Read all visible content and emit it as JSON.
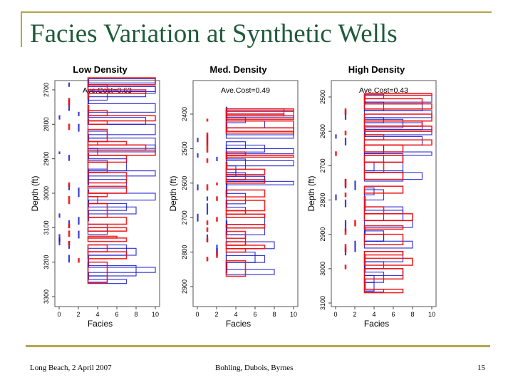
{
  "slide": {
    "title": "Facies Variation at Synthetic Wells",
    "footer_left": "Long Beach, 2 April 2007",
    "footer_center": "Bohling, Dubois, Byrnes",
    "page_number": "15",
    "accent_color": "#b5a54e",
    "title_color": "#1f5c3a"
  },
  "chart_data": [
    {
      "type": "line",
      "title": "Low Density",
      "annotation": "Ave.Cost=0.63",
      "xlabel": "Facies",
      "ylabel": "Depth (ft)",
      "xlim": [
        0,
        10
      ],
      "xticks": [
        "0",
        "2",
        "4",
        "6",
        "8",
        "10"
      ],
      "ylim": [
        3300,
        2700
      ],
      "yticks": [
        "2700",
        "2800",
        "2900",
        "3000",
        "3100",
        "3200",
        "3300"
      ],
      "series_colors": {
        "actual": "#ee1111",
        "realizations": "#1a1acc"
      },
      "actual": [
        [
          2665,
          10
        ],
        [
          2685,
          5
        ],
        [
          2700,
          9
        ],
        [
          2710,
          3
        ],
        [
          2725,
          1
        ],
        [
          2745,
          3
        ],
        [
          2760,
          5
        ],
        [
          2775,
          10
        ],
        [
          2790,
          5
        ],
        [
          2800,
          1
        ],
        [
          2815,
          5
        ],
        [
          2850,
          7
        ],
        [
          2860,
          9
        ],
        [
          2875,
          10
        ],
        [
          2890,
          7
        ],
        [
          2910,
          5
        ],
        [
          2940,
          7
        ],
        [
          2970,
          1
        ],
        [
          2980,
          7
        ],
        [
          3000,
          5
        ],
        [
          3010,
          1
        ],
        [
          3030,
          5
        ],
        [
          3070,
          7
        ],
        [
          3090,
          1
        ],
        [
          3100,
          7
        ],
        [
          3110,
          1
        ],
        [
          3125,
          6
        ],
        [
          3130,
          7
        ],
        [
          3140,
          1
        ],
        [
          3150,
          5
        ],
        [
          3170,
          7
        ],
        [
          3190,
          2
        ],
        [
          3200,
          5
        ],
        [
          3260,
          null
        ]
      ],
      "realizations": [
        [
          [
            2668,
            10
          ],
          [
            2680,
            1
          ],
          [
            2690,
            10
          ],
          [
            2705,
            9
          ],
          [
            2720,
            3
          ],
          [
            2740,
            10
          ],
          [
            2765,
            2
          ],
          [
            2775,
            0
          ],
          [
            2785,
            3
          ],
          [
            2800,
            10
          ],
          [
            2830,
            3
          ],
          [
            2850,
            4
          ],
          [
            2860,
            10
          ],
          [
            2880,
            0
          ],
          [
            2885,
            3
          ],
          [
            2900,
            7
          ],
          [
            2935,
            10
          ],
          [
            2950,
            3
          ],
          [
            2975,
            1
          ],
          [
            2990,
            3
          ],
          [
            3000,
            10
          ],
          [
            3020,
            3
          ],
          [
            3040,
            8
          ],
          [
            3060,
            0
          ],
          [
            3070,
            2
          ],
          [
            3090,
            5
          ],
          [
            3110,
            2
          ],
          [
            3130,
            0
          ],
          [
            3140,
            1
          ],
          [
            3160,
            8
          ],
          [
            3180,
            1
          ],
          [
            3200,
            3
          ],
          [
            3215,
            10
          ],
          [
            3230,
            3
          ],
          [
            3250,
            7
          ],
          [
            3262,
            null
          ]
        ],
        [
          [
            2670,
            3
          ],
          [
            2690,
            10
          ],
          [
            2710,
            5
          ],
          [
            2730,
            1
          ],
          [
            2760,
            3
          ],
          [
            2780,
            9
          ],
          [
            2800,
            2
          ],
          [
            2820,
            5
          ],
          [
            2840,
            10
          ],
          [
            2870,
            4
          ],
          [
            2890,
            1
          ],
          [
            2905,
            5
          ],
          [
            2930,
            3
          ],
          [
            2960,
            7
          ],
          [
            2985,
            2
          ],
          [
            3010,
            4
          ],
          [
            3030,
            7
          ],
          [
            3050,
            3
          ],
          [
            3080,
            1
          ],
          [
            3100,
            5
          ],
          [
            3120,
            0
          ],
          [
            3150,
            7
          ],
          [
            3180,
            3
          ],
          [
            3210,
            8
          ],
          [
            3240,
            5
          ],
          [
            3258,
            null
          ]
        ]
      ]
    },
    {
      "type": "line",
      "title": "Med. Density",
      "annotation": "Ave.Cost=0.49",
      "xlabel": "Facies",
      "ylabel": "Depth (ft)",
      "xlim": [
        0,
        10
      ],
      "xticks": [
        "0",
        "2",
        "4",
        "6",
        "8",
        "10"
      ],
      "ylim": [
        2950,
        2350
      ],
      "yticks": [
        "2400",
        "2500",
        "2600",
        "2700",
        "2800",
        "2900"
      ],
      "series_colors": {
        "actual": "#ee1111",
        "realizations": "#1a1acc"
      },
      "actual": [
        [
          2385,
          10
        ],
        [
          2392,
          3
        ],
        [
          2400,
          9
        ],
        [
          2405,
          10
        ],
        [
          2415,
          1
        ],
        [
          2420,
          10
        ],
        [
          2440,
          3
        ],
        [
          2450,
          10
        ],
        [
          2455,
          1
        ],
        [
          2510,
          5
        ],
        [
          2520,
          10
        ],
        [
          2525,
          3
        ],
        [
          2530,
          1
        ],
        [
          2540,
          3
        ],
        [
          2560,
          7
        ],
        [
          2575,
          5
        ],
        [
          2590,
          7
        ],
        [
          2600,
          2
        ],
        [
          2605,
          1
        ],
        [
          2620,
          7
        ],
        [
          2640,
          2
        ],
        [
          2650,
          7
        ],
        [
          2680,
          5
        ],
        [
          2690,
          7
        ],
        [
          2700,
          2
        ],
        [
          2710,
          1
        ],
        [
          2720,
          7
        ],
        [
          2730,
          1
        ],
        [
          2740,
          5
        ],
        [
          2760,
          1
        ],
        [
          2770,
          5
        ],
        [
          2780,
          7
        ],
        [
          2790,
          5
        ],
        [
          2800,
          2
        ],
        [
          2815,
          1
        ],
        [
          2825,
          5
        ],
        [
          2870,
          null
        ]
      ],
      "realizations": [
        [
          [
            2380,
            3
          ],
          [
            2390,
            10
          ],
          [
            2410,
            5
          ],
          [
            2425,
            3
          ],
          [
            2440,
            10
          ],
          [
            2470,
            0
          ],
          [
            2480,
            5
          ],
          [
            2500,
            10
          ],
          [
            2515,
            0
          ],
          [
            2525,
            2
          ],
          [
            2535,
            10
          ],
          [
            2550,
            4
          ],
          [
            2570,
            5
          ],
          [
            2580,
            7
          ],
          [
            2595,
            10
          ],
          [
            2605,
            0
          ],
          [
            2620,
            3
          ],
          [
            2640,
            1
          ],
          [
            2650,
            3
          ],
          [
            2670,
            5
          ],
          [
            2690,
            0
          ],
          [
            2710,
            3
          ],
          [
            2730,
            7
          ],
          [
            2750,
            1
          ],
          [
            2770,
            8
          ],
          [
            2790,
            2
          ],
          [
            2810,
            7
          ],
          [
            2830,
            3
          ],
          [
            2850,
            8
          ],
          [
            2865,
            null
          ]
        ],
        [
          [
            2385,
            9
          ],
          [
            2400,
            3
          ],
          [
            2420,
            7
          ],
          [
            2440,
            10
          ],
          [
            2460,
            1
          ],
          [
            2490,
            7
          ],
          [
            2510,
            3
          ],
          [
            2530,
            5
          ],
          [
            2560,
            4
          ],
          [
            2580,
            7
          ],
          [
            2600,
            3
          ],
          [
            2630,
            5
          ],
          [
            2660,
            1
          ],
          [
            2690,
            7
          ],
          [
            2720,
            3
          ],
          [
            2750,
            5
          ],
          [
            2780,
            2
          ],
          [
            2800,
            6
          ],
          [
            2830,
            3
          ],
          [
            2860,
            null
          ]
        ]
      ]
    },
    {
      "type": "line",
      "title": "High Density",
      "annotation": "Ave.Cost=0.43",
      "xlabel": "Facies",
      "ylabel": "Depth (ft)",
      "xlim": [
        0,
        10
      ],
      "xticks": [
        "0",
        "2",
        "4",
        "6",
        "8",
        "10"
      ],
      "ylim": [
        3100,
        2480
      ],
      "yticks": [
        "2500",
        "2600",
        "2700",
        "2800",
        "2900",
        "3000",
        "3100"
      ],
      "series_colors": {
        "actual": "#ee1111",
        "realizations": "#1a1acc"
      },
      "actual": [
        [
          2490,
          10
        ],
        [
          2495,
          3
        ],
        [
          2505,
          9
        ],
        [
          2520,
          10
        ],
        [
          2535,
          1
        ],
        [
          2550,
          10
        ],
        [
          2570,
          9
        ],
        [
          2585,
          10
        ],
        [
          2600,
          1
        ],
        [
          2610,
          5
        ],
        [
          2625,
          10
        ],
        [
          2640,
          7
        ],
        [
          2660,
          0
        ],
        [
          2670,
          7
        ],
        [
          2690,
          5
        ],
        [
          2720,
          7
        ],
        [
          2740,
          1
        ],
        [
          2760,
          7
        ],
        [
          2780,
          1
        ],
        [
          2790,
          3
        ],
        [
          2820,
          5
        ],
        [
          2840,
          8
        ],
        [
          2860,
          2
        ],
        [
          2875,
          7
        ],
        [
          2885,
          1
        ],
        [
          2900,
          7
        ],
        [
          2930,
          1
        ],
        [
          2950,
          7
        ],
        [
          2960,
          3
        ],
        [
          2970,
          8
        ],
        [
          2990,
          1
        ],
        [
          3000,
          7
        ],
        [
          3030,
          3
        ],
        [
          3060,
          7
        ],
        [
          3070,
          null
        ]
      ],
      "realizations": [
        [
          [
            2492,
            5
          ],
          [
            2505,
            3
          ],
          [
            2520,
            9
          ],
          [
            2540,
            10
          ],
          [
            2560,
            5
          ],
          [
            2575,
            9
          ],
          [
            2595,
            10
          ],
          [
            2610,
            0
          ],
          [
            2620,
            1
          ],
          [
            2640,
            5
          ],
          [
            2660,
            10
          ],
          [
            2670,
            5
          ],
          [
            2690,
            7
          ],
          [
            2720,
            9
          ],
          [
            2740,
            1
          ],
          [
            2765,
            4
          ],
          [
            2785,
            0
          ],
          [
            2800,
            1
          ],
          [
            2820,
            7
          ],
          [
            2840,
            5
          ],
          [
            2860,
            8
          ],
          [
            2880,
            3
          ],
          [
            2900,
            5
          ],
          [
            2920,
            8
          ],
          [
            2940,
            1
          ],
          [
            2960,
            3
          ],
          [
            2980,
            5
          ],
          [
            3000,
            7
          ],
          [
            3020,
            4
          ],
          [
            3040,
            3
          ],
          [
            3060,
            5
          ],
          [
            3068,
            null
          ]
        ],
        [
          [
            2495,
            10
          ],
          [
            2515,
            5
          ],
          [
            2540,
            1
          ],
          [
            2565,
            7
          ],
          [
            2590,
            3
          ],
          [
            2615,
            9
          ],
          [
            2640,
            5
          ],
          [
            2665,
            7
          ],
          [
            2690,
            4
          ],
          [
            2715,
            7
          ],
          [
            2745,
            2
          ],
          [
            2770,
            5
          ],
          [
            2800,
            3
          ],
          [
            2830,
            7
          ],
          [
            2860,
            1
          ],
          [
            2890,
            5
          ],
          [
            2920,
            2
          ],
          [
            2950,
            7
          ],
          [
            2980,
            3
          ],
          [
            3010,
            5
          ],
          [
            3040,
            4
          ],
          [
            3065,
            null
          ]
        ]
      ]
    }
  ]
}
